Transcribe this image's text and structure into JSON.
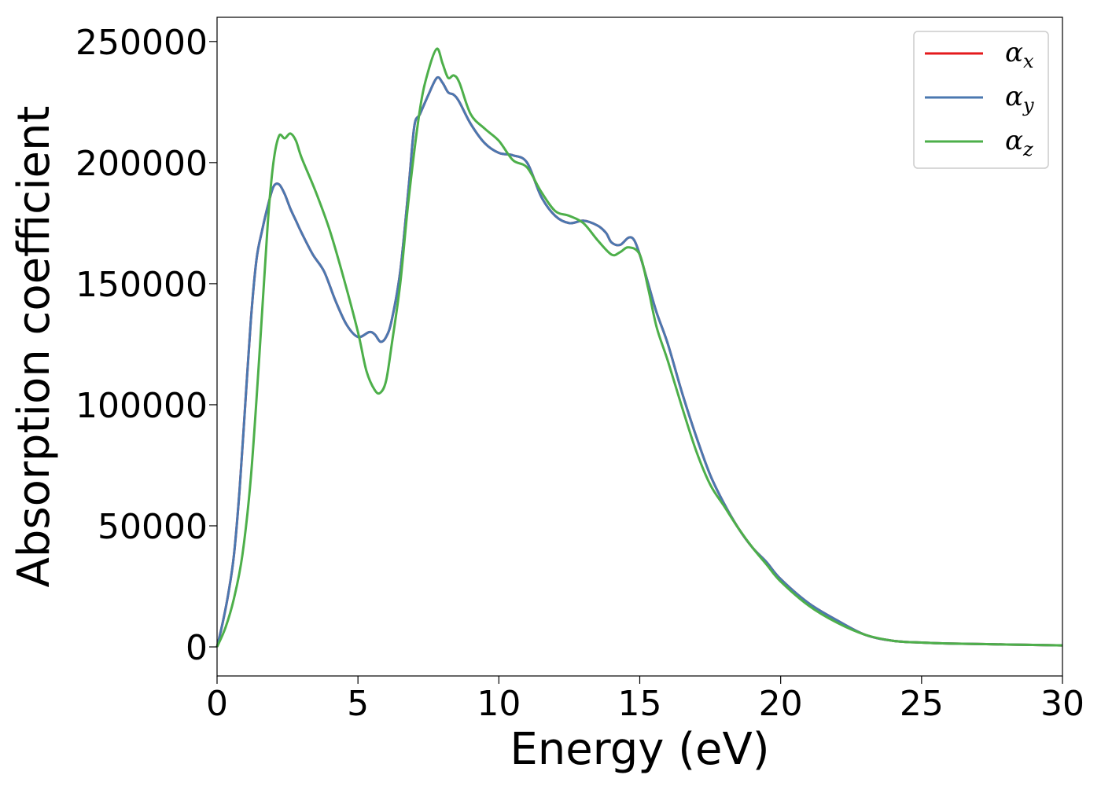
{
  "chart_data": {
    "type": "line",
    "title": "",
    "xlabel": "Energy (eV)",
    "ylabel": "Absorption coefficient",
    "xlim": [
      0,
      30
    ],
    "ylim": [
      -12000,
      260000
    ],
    "xticks": [
      "0",
      "5",
      "10",
      "15",
      "20",
      "25",
      "30"
    ],
    "yticks": [
      "0",
      "50000",
      "100000",
      "150000",
      "200000",
      "250000"
    ],
    "grid": false,
    "legend_position": "top-right",
    "series": [
      {
        "name": "α",
        "sub": "x",
        "color": "#e41a1c",
        "x": [
          0,
          0.2,
          0.4,
          0.6,
          0.8,
          1.0,
          1.2,
          1.4,
          1.6,
          1.8,
          2.0,
          2.2,
          2.4,
          2.6,
          2.8,
          3.0,
          3.4,
          3.8,
          4.2,
          4.6,
          5.0,
          5.4,
          5.6,
          5.8,
          6.0,
          6.2,
          6.5,
          6.8,
          7.0,
          7.2,
          7.5,
          7.8,
          8.0,
          8.2,
          8.4,
          8.6,
          9.0,
          9.5,
          10.0,
          10.5,
          11.0,
          11.5,
          12.0,
          12.5,
          13.0,
          13.5,
          13.8,
          14.0,
          14.3,
          14.6,
          14.8,
          15.0,
          15.3,
          15.6,
          16.0,
          16.5,
          17.0,
          17.5,
          18.0,
          18.5,
          19.0,
          19.5,
          20.0,
          21.0,
          22.0,
          23.0,
          24.0,
          25.0,
          26.0,
          28.0,
          30.0
        ],
        "y": [
          0,
          10000,
          22000,
          38000,
          65000,
          100000,
          135000,
          160000,
          172000,
          182000,
          190000,
          191000,
          187000,
          181000,
          176000,
          171000,
          162000,
          155000,
          143000,
          133000,
          128000,
          130000,
          129000,
          126000,
          128000,
          135000,
          155000,
          190000,
          215000,
          220000,
          228000,
          235000,
          233000,
          229000,
          228000,
          225000,
          216000,
          208000,
          204000,
          203000,
          200000,
          186000,
          178000,
          175000,
          176000,
          174000,
          171000,
          167000,
          166000,
          169000,
          168000,
          162000,
          150000,
          138000,
          125000,
          105000,
          87000,
          71000,
          59000,
          49000,
          41000,
          35000,
          28000,
          18000,
          11000,
          5000,
          2500,
          1800,
          1400,
          1000,
          600
        ]
      },
      {
        "name": "α",
        "sub": "y",
        "color": "#4b78b0",
        "x": [
          0,
          0.2,
          0.4,
          0.6,
          0.8,
          1.0,
          1.2,
          1.4,
          1.6,
          1.8,
          2.0,
          2.2,
          2.4,
          2.6,
          2.8,
          3.0,
          3.4,
          3.8,
          4.2,
          4.6,
          5.0,
          5.4,
          5.6,
          5.8,
          6.0,
          6.2,
          6.5,
          6.8,
          7.0,
          7.2,
          7.5,
          7.8,
          8.0,
          8.2,
          8.4,
          8.6,
          9.0,
          9.5,
          10.0,
          10.5,
          11.0,
          11.5,
          12.0,
          12.5,
          13.0,
          13.5,
          13.8,
          14.0,
          14.3,
          14.6,
          14.8,
          15.0,
          15.3,
          15.6,
          16.0,
          16.5,
          17.0,
          17.5,
          18.0,
          18.5,
          19.0,
          19.5,
          20.0,
          21.0,
          22.0,
          23.0,
          24.0,
          25.0,
          26.0,
          28.0,
          30.0
        ],
        "y": [
          0,
          10000,
          22000,
          38000,
          65000,
          100000,
          135000,
          160000,
          172000,
          182000,
          190000,
          191000,
          187000,
          181000,
          176000,
          171000,
          162000,
          155000,
          143000,
          133000,
          128000,
          130000,
          129000,
          126000,
          128000,
          135000,
          155000,
          190000,
          215000,
          220000,
          228000,
          235000,
          233000,
          229000,
          228000,
          225000,
          216000,
          208000,
          204000,
          203000,
          200000,
          186000,
          178000,
          175000,
          176000,
          174000,
          171000,
          167000,
          166000,
          169000,
          168000,
          162000,
          150000,
          138000,
          125000,
          105000,
          87000,
          71000,
          59000,
          49000,
          41000,
          35000,
          28000,
          18000,
          11000,
          5000,
          2500,
          1800,
          1400,
          1000,
          600
        ]
      },
      {
        "name": "α",
        "sub": "z",
        "color": "#4daf4a",
        "x": [
          0,
          0.3,
          0.6,
          0.9,
          1.2,
          1.5,
          1.8,
          2.0,
          2.2,
          2.4,
          2.6,
          2.8,
          3.0,
          3.5,
          4.0,
          4.5,
          5.0,
          5.3,
          5.6,
          5.8,
          6.0,
          6.2,
          6.5,
          6.8,
          7.2,
          7.5,
          7.8,
          8.0,
          8.2,
          8.4,
          8.6,
          9.0,
          9.5,
          10.0,
          10.5,
          11.0,
          11.5,
          12.0,
          12.5,
          13.0,
          13.5,
          14.0,
          14.3,
          14.6,
          15.0,
          15.3,
          15.6,
          16.0,
          16.5,
          17.0,
          17.5,
          18.0,
          18.5,
          19.0,
          19.5,
          20.0,
          21.0,
          22.0,
          23.0,
          24.0,
          25.0,
          26.0,
          28.0,
          30.0
        ],
        "y": [
          0,
          8000,
          20000,
          38000,
          70000,
          120000,
          175000,
          200000,
          211000,
          210000,
          212000,
          209000,
          202000,
          188000,
          172000,
          152000,
          130000,
          114000,
          106000,
          105000,
          110000,
          125000,
          150000,
          185000,
          222000,
          238000,
          247000,
          241000,
          235000,
          236000,
          233000,
          220000,
          214000,
          209000,
          201000,
          198000,
          188000,
          180000,
          178000,
          175000,
          168000,
          162000,
          163000,
          165000,
          162000,
          148000,
          132000,
          118000,
          99000,
          81000,
          67000,
          58000,
          49000,
          41000,
          34000,
          27000,
          17000,
          10000,
          5000,
          2500,
          1800,
          1400,
          1000,
          600
        ]
      }
    ]
  }
}
